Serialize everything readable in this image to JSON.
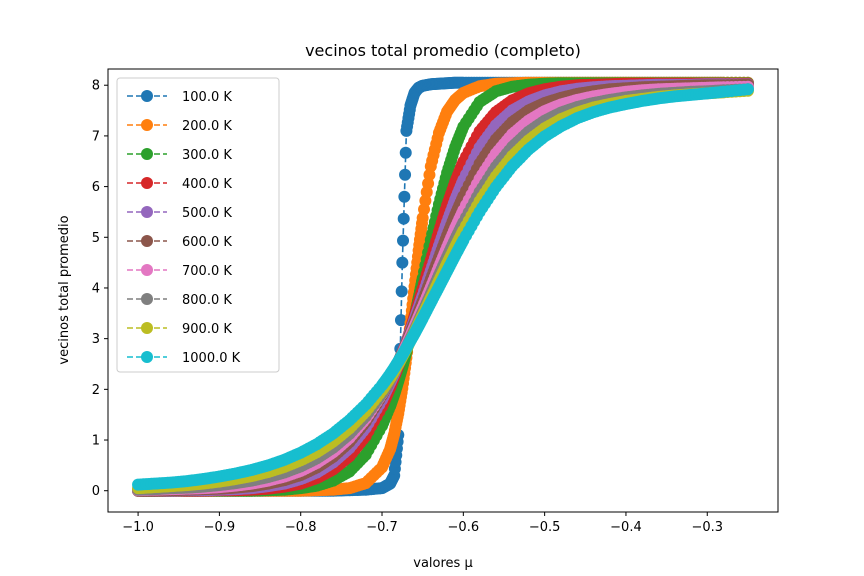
{
  "chart_data": {
    "type": "line",
    "title": "vecinos total promedio (completo)",
    "xlabel": "valores μ",
    "ylabel": "vecinos total promedio",
    "xlim": [
      -1.037,
      -0.213
    ],
    "ylim": [
      -0.42,
      8.32
    ],
    "x_ticks": [
      -1.0,
      -0.9,
      -0.8,
      -0.7,
      -0.6,
      -0.5,
      -0.4,
      -0.3
    ],
    "x_tick_labels": [
      "−1.0",
      "−0.9",
      "−0.8",
      "−0.7",
      "−0.6",
      "−0.5",
      "−0.4",
      "−0.3"
    ],
    "y_ticks": [
      0,
      1,
      2,
      3,
      4,
      5,
      6,
      7,
      8
    ],
    "y_tick_labels": [
      "0",
      "1",
      "2",
      "3",
      "4",
      "5",
      "6",
      "7",
      "8"
    ],
    "grid": false,
    "legend_position": "top-left",
    "x": [
      -1.0,
      -0.98,
      -0.96,
      -0.94,
      -0.92,
      -0.9,
      -0.88,
      -0.86,
      -0.84,
      -0.82,
      -0.8,
      -0.78,
      -0.76,
      -0.74,
      -0.72,
      -0.7,
      -0.69,
      -0.685,
      -0.68,
      -0.675,
      -0.67,
      -0.665,
      -0.66,
      -0.655,
      -0.65,
      -0.64,
      -0.63,
      -0.62,
      -0.61,
      -0.6,
      -0.58,
      -0.56,
      -0.54,
      -0.52,
      -0.5,
      -0.48,
      -0.46,
      -0.44,
      -0.42,
      -0.4,
      -0.38,
      -0.36,
      -0.34,
      -0.32,
      -0.3,
      -0.28,
      -0.25
    ],
    "series": [
      {
        "name": "100.0 K",
        "color": "#1f77b4",
        "values": [
          0.0,
          0.0,
          0.0,
          0.0,
          0.0,
          0.0,
          0.0,
          0.0,
          0.0,
          0.0,
          0.0,
          0.0,
          0.0,
          0.01,
          0.02,
          0.05,
          0.14,
          0.3,
          1.1,
          4.5,
          7.1,
          7.6,
          7.85,
          7.95,
          7.99,
          8.02,
          8.03,
          8.04,
          8.05,
          8.05,
          8.05,
          8.05,
          8.05,
          8.05,
          8.05,
          8.05,
          8.05,
          8.05,
          8.05,
          8.05,
          8.05,
          8.05,
          8.05,
          8.05,
          8.05,
          8.05,
          8.05
        ]
      },
      {
        "name": "200.0 K",
        "color": "#ff7f0e",
        "values": [
          0.0,
          0.0,
          0.0,
          0.0,
          0.0,
          0.0,
          0.0,
          0.0,
          0.0,
          0.0,
          0.0,
          0.01,
          0.02,
          0.05,
          0.15,
          0.46,
          0.82,
          1.12,
          1.52,
          2.02,
          2.62,
          3.31,
          4.03,
          4.74,
          5.38,
          6.4,
          7.06,
          7.48,
          7.71,
          7.85,
          7.98,
          8.03,
          8.04,
          8.05,
          8.05,
          8.05,
          8.05,
          8.05,
          8.05,
          8.05,
          8.05,
          8.05,
          8.05,
          8.05,
          8.05,
          8.05,
          8.05
        ]
      },
      {
        "name": "300.0 K",
        "color": "#2ca02c",
        "values": [
          0.0,
          0.0,
          0.0,
          0.0,
          0.0,
          0.0,
          0.0,
          0.0,
          0.01,
          0.02,
          0.05,
          0.1,
          0.2,
          0.38,
          0.71,
          1.28,
          1.67,
          1.9,
          2.16,
          2.44,
          2.75,
          3.08,
          3.43,
          3.8,
          4.19,
          4.95,
          5.65,
          6.27,
          6.78,
          7.18,
          7.67,
          7.88,
          7.97,
          8.01,
          8.03,
          8.04,
          8.04,
          8.04,
          8.04,
          8.04,
          8.04,
          8.04,
          8.04,
          8.04,
          8.04,
          8.04,
          8.04
        ]
      },
      {
        "name": "400.0 K",
        "color": "#d62728",
        "values": [
          0.0,
          0.0,
          0.0,
          0.0,
          0.0,
          0.01,
          0.01,
          0.02,
          0.04,
          0.08,
          0.14,
          0.25,
          0.42,
          0.68,
          1.08,
          1.66,
          2.03,
          2.24,
          2.46,
          2.69,
          2.93,
          3.18,
          3.44,
          3.71,
          3.99,
          4.55,
          5.11,
          5.63,
          6.09,
          6.49,
          7.09,
          7.47,
          7.7,
          7.84,
          7.92,
          7.97,
          8.0,
          8.01,
          8.02,
          8.03,
          8.03,
          8.03,
          8.03,
          8.03,
          8.03,
          8.03,
          8.03
        ]
      },
      {
        "name": "500.0 K",
        "color": "#9467bd",
        "values": [
          0.0,
          0.0,
          0.0,
          0.01,
          0.01,
          0.02,
          0.03,
          0.05,
          0.09,
          0.14,
          0.23,
          0.36,
          0.56,
          0.84,
          1.24,
          1.79,
          2.13,
          2.31,
          2.51,
          2.72,
          2.93,
          3.15,
          3.38,
          3.61,
          3.85,
          4.34,
          4.83,
          5.3,
          5.74,
          6.13,
          6.77,
          7.21,
          7.5,
          7.68,
          7.8,
          7.88,
          7.93,
          7.96,
          7.98,
          7.99,
          8.0,
          8.01,
          8.01,
          8.01,
          8.02,
          8.02,
          8.02
        ]
      },
      {
        "name": "600.0 K",
        "color": "#8c564b",
        "values": [
          0.0,
          0.0,
          0.01,
          0.02,
          0.03,
          0.04,
          0.06,
          0.09,
          0.14,
          0.21,
          0.31,
          0.46,
          0.67,
          0.96,
          1.36,
          1.88,
          2.19,
          2.36,
          2.54,
          2.72,
          2.91,
          3.11,
          3.31,
          3.52,
          3.73,
          4.17,
          4.6,
          5.03,
          5.44,
          5.81,
          6.45,
          6.93,
          7.27,
          7.5,
          7.65,
          7.75,
          7.83,
          7.88,
          7.92,
          7.94,
          7.96,
          7.97,
          7.98,
          7.99,
          8.0,
          8.0,
          8.01
        ]
      },
      {
        "name": "700.0 K",
        "color": "#e377c2",
        "values": [
          0.01,
          0.02,
          0.03,
          0.04,
          0.05,
          0.07,
          0.1,
          0.14,
          0.2,
          0.28,
          0.39,
          0.55,
          0.76,
          1.04,
          1.42,
          1.91,
          2.2,
          2.36,
          2.52,
          2.69,
          2.87,
          3.05,
          3.24,
          3.43,
          3.62,
          4.01,
          4.41,
          4.8,
          5.18,
          5.53,
          6.15,
          6.65,
          7.03,
          7.3,
          7.49,
          7.62,
          7.71,
          7.78,
          7.83,
          7.87,
          7.9,
          7.92,
          7.93,
          7.94,
          7.95,
          7.96,
          7.97
        ]
      },
      {
        "name": "800.0 K",
        "color": "#7f7f7f",
        "values": [
          0.02,
          0.03,
          0.05,
          0.06,
          0.08,
          0.11,
          0.15,
          0.2,
          0.27,
          0.36,
          0.48,
          0.64,
          0.85,
          1.12,
          1.47,
          1.92,
          2.19,
          2.34,
          2.49,
          2.65,
          2.82,
          2.99,
          3.16,
          3.34,
          3.52,
          3.88,
          4.25,
          4.61,
          4.96,
          5.29,
          5.89,
          6.39,
          6.78,
          7.08,
          7.3,
          7.46,
          7.57,
          7.65,
          7.71,
          7.76,
          7.8,
          7.83,
          7.85,
          7.87,
          7.88,
          7.9,
          7.92
        ]
      },
      {
        "name": "900.0 K",
        "color": "#bcbd22",
        "values": [
          0.05,
          0.07,
          0.09,
          0.11,
          0.14,
          0.18,
          0.23,
          0.29,
          0.37,
          0.47,
          0.6,
          0.76,
          0.97,
          1.23,
          1.56,
          1.98,
          2.22,
          2.36,
          2.5,
          2.65,
          2.8,
          2.96,
          3.12,
          3.29,
          3.46,
          3.8,
          4.14,
          4.48,
          4.81,
          5.13,
          5.71,
          6.2,
          6.6,
          6.91,
          7.15,
          7.33,
          7.46,
          7.56,
          7.63,
          7.69,
          7.73,
          7.77,
          7.8,
          7.82,
          7.84,
          7.86,
          7.89
        ]
      },
      {
        "name": "1000.0 K",
        "color": "#17becf",
        "values": [
          0.12,
          0.14,
          0.16,
          0.19,
          0.23,
          0.28,
          0.34,
          0.41,
          0.5,
          0.61,
          0.75,
          0.92,
          1.13,
          1.39,
          1.7,
          2.08,
          2.3,
          2.42,
          2.55,
          2.68,
          2.82,
          2.96,
          3.1,
          3.25,
          3.4,
          3.71,
          4.02,
          4.33,
          4.64,
          4.94,
          5.5,
          5.99,
          6.4,
          6.73,
          6.99,
          7.19,
          7.35,
          7.47,
          7.56,
          7.63,
          7.69,
          7.74,
          7.78,
          7.81,
          7.84,
          7.87,
          7.92
        ]
      }
    ]
  }
}
